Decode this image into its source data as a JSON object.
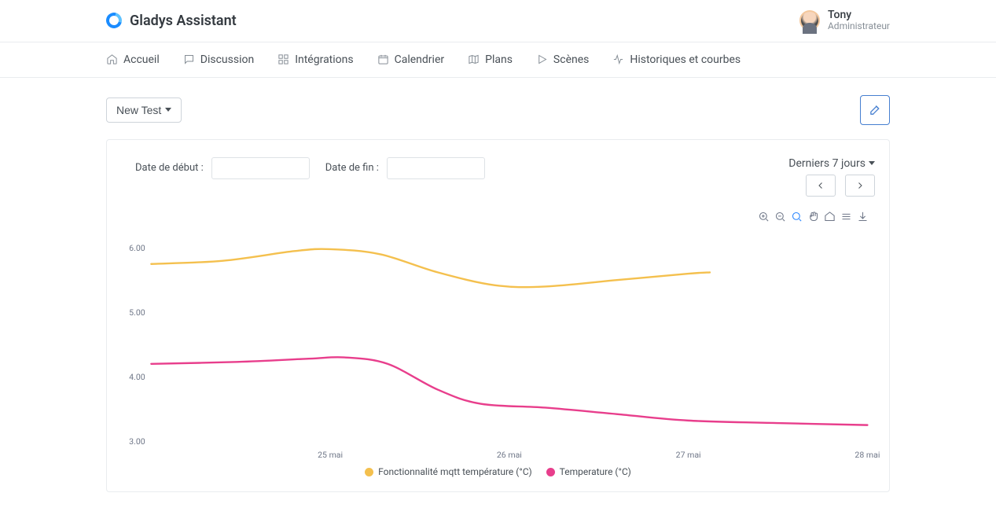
{
  "brand": {
    "name": "Gladys Assistant"
  },
  "user": {
    "name": "Tony",
    "role": "Administrateur"
  },
  "nav": {
    "home": "Accueil",
    "chat": "Discussion",
    "integrations": "Intégrations",
    "calendar": "Calendrier",
    "maps": "Plans",
    "scenes": "Scènes",
    "charts": "Historiques et courbes"
  },
  "page": {
    "dropdown_label": "New Test",
    "date_start_label": "Date de début :",
    "date_end_label": "Date de fin :",
    "range_label": "Derniers 7 jours"
  },
  "chart": {
    "type": "line",
    "background_color": "#ffffff",
    "grid_color": "#f0f0f0",
    "ylim": [
      3.0,
      6.3
    ],
    "yticks": [
      3.0,
      4.0,
      5.0,
      6.0
    ],
    "ytick_labels": [
      "3.00",
      "4.00",
      "5.00",
      "6.00"
    ],
    "xtick_labels": [
      "25 mai",
      "26 mai",
      "27 mai",
      "28 mai"
    ],
    "xtick_positions": [
      0.25,
      0.5,
      0.75,
      1.0
    ],
    "series": [
      {
        "name": "Fonctionnalité mqtt température (°C)",
        "color": "#f4c04e",
        "line_width": 2.5,
        "points": [
          {
            "x": 0.0,
            "y": 5.75
          },
          {
            "x": 0.1,
            "y": 5.8
          },
          {
            "x": 0.2,
            "y": 5.95
          },
          {
            "x": 0.25,
            "y": 5.98
          },
          {
            "x": 0.32,
            "y": 5.9
          },
          {
            "x": 0.4,
            "y": 5.62
          },
          {
            "x": 0.48,
            "y": 5.42
          },
          {
            "x": 0.55,
            "y": 5.4
          },
          {
            "x": 0.65,
            "y": 5.5
          },
          {
            "x": 0.75,
            "y": 5.6
          },
          {
            "x": 0.78,
            "y": 5.62
          }
        ]
      },
      {
        "name": "Temperature (°C)",
        "color": "#e83e8c",
        "line_width": 2.5,
        "points": [
          {
            "x": 0.0,
            "y": 4.2
          },
          {
            "x": 0.12,
            "y": 4.23
          },
          {
            "x": 0.22,
            "y": 4.28
          },
          {
            "x": 0.27,
            "y": 4.3
          },
          {
            "x": 0.33,
            "y": 4.2
          },
          {
            "x": 0.4,
            "y": 3.8
          },
          {
            "x": 0.46,
            "y": 3.58
          },
          {
            "x": 0.55,
            "y": 3.52
          },
          {
            "x": 0.65,
            "y": 3.42
          },
          {
            "x": 0.75,
            "y": 3.32
          },
          {
            "x": 0.88,
            "y": 3.28
          },
          {
            "x": 1.0,
            "y": 3.25
          }
        ]
      }
    ]
  }
}
